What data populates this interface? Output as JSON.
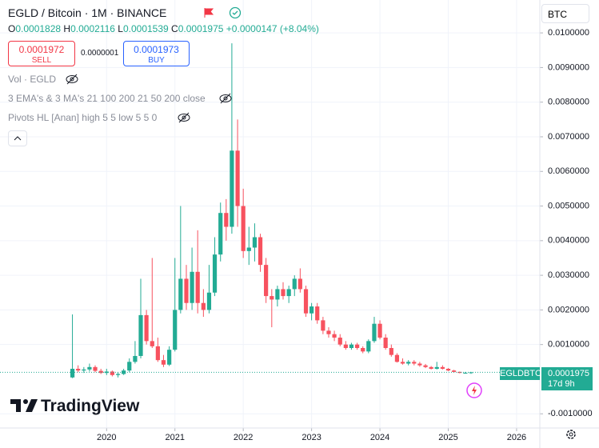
{
  "header": {
    "title": "EGLD / Bitcoin · 1M · BINANCE",
    "ohlc": [
      "O",
      "0.0001828",
      "H",
      "0.0002116",
      "L",
      "0.0001539",
      "C",
      "0.0001975"
    ],
    "change": "+0.0000147 (+8.04%)",
    "sell_price": "0.0001972",
    "sell": "SELL",
    "spread": "0.0000001",
    "buy_price": "0.0001973",
    "buy": "BUY",
    "indicators": [
      "Vol · EGLD",
      "3 EMA's & 3 MA's 21 100 200 21 50 200 close",
      "Pivots HL [Anan] high 5 5 low 5 5 0"
    ],
    "currency": "BTC",
    "symbol": "EGLDBTC",
    "countdown": "17d 9h",
    "brand": "TradingView"
  },
  "chart_data": {
    "type": "candlestick",
    "x": [
      2019.5,
      2019.583,
      2019.667,
      2019.75,
      2019.833,
      2019.917,
      2020,
      2020.083,
      2020.167,
      2020.25,
      2020.333,
      2020.417,
      2020.5,
      2020.583,
      2020.667,
      2020.75,
      2020.833,
      2020.917,
      2021,
      2021.083,
      2021.167,
      2021.25,
      2021.333,
      2021.417,
      2021.5,
      2021.583,
      2021.667,
      2021.75,
      2021.833,
      2021.917,
      2022,
      2022.083,
      2022.167,
      2022.25,
      2022.333,
      2022.417,
      2022.5,
      2022.583,
      2022.667,
      2022.75,
      2022.833,
      2022.917,
      2023,
      2023.083,
      2023.167,
      2023.25,
      2023.333,
      2023.417,
      2023.5,
      2023.583,
      2023.667,
      2023.75,
      2023.833,
      2023.917,
      2024,
      2024.083,
      2024.167,
      2024.25,
      2024.333,
      2024.417,
      2024.5,
      2024.583,
      2024.667,
      2024.75,
      2024.833,
      2024.917,
      2025,
      2025.083,
      2025.167,
      2025.25,
      2025.333
    ],
    "open": [
      5e-05,
      0.0003,
      0.00025,
      0.00028,
      0.00035,
      0.00024,
      0.00018,
      0.00022,
      0.00012,
      0.00015,
      0.00025,
      0.0005,
      0.00067,
      0.00185,
      0.0011,
      0.00095,
      0.00055,
      0.00042,
      0.00085,
      0.002,
      0.0029,
      0.0022,
      0.0031,
      0.0022,
      0.002,
      0.0025,
      0.0036,
      0.0048,
      0.0044,
      0.0066,
      0.005,
      0.0037,
      0.0038,
      0.0041,
      0.0033,
      0.0024,
      0.0023,
      0.0026,
      0.0024,
      0.0026,
      0.0029,
      0.0026,
      0.0019,
      0.0021,
      0.0017,
      0.0014,
      0.0013,
      0.0012,
      0.001,
      0.0009,
      0.001,
      0.0009,
      0.0008,
      0.0011,
      0.0016,
      0.0012,
      0.0009,
      0.0007,
      0.0005,
      0.00045,
      0.0005,
      0.00045,
      0.0004,
      0.00035,
      0.0003,
      0.00035,
      0.0003,
      0.00025,
      0.00021,
      0.00018,
      0.0001828
    ],
    "high": [
      0.00187,
      0.0004,
      0.00035,
      0.00045,
      0.0004,
      0.0003,
      0.0003,
      0.00025,
      0.0002,
      0.0003,
      0.0006,
      0.0011,
      0.0029,
      0.002,
      0.0035,
      0.0012,
      0.0007,
      0.00095,
      0.0035,
      0.005,
      0.0033,
      0.0038,
      0.0043,
      0.0026,
      0.0033,
      0.0041,
      0.0051,
      0.0052,
      0.0097,
      0.0075,
      0.0055,
      0.0044,
      0.0045,
      0.0042,
      0.0035,
      0.0026,
      0.0027,
      0.0028,
      0.0027,
      0.003,
      0.0032,
      0.0027,
      0.0022,
      0.0022,
      0.0018,
      0.0015,
      0.0014,
      0.0013,
      0.0011,
      0.00105,
      0.00105,
      0.00095,
      0.00115,
      0.0018,
      0.0017,
      0.0013,
      0.001,
      0.00075,
      0.0006,
      0.00055,
      0.00055,
      0.0005,
      0.00044,
      0.00038,
      0.0005,
      0.0004,
      0.00032,
      0.00027,
      0.00022,
      0.00021,
      0.0002116
    ],
    "low": [
      3e-05,
      0.0002,
      0.00018,
      0.00022,
      0.0002,
      0.00015,
      0.00012,
      8e-05,
      5e-05,
      0.00012,
      0.0002,
      0.00045,
      0.0006,
      0.001,
      0.0009,
      0.0005,
      0.00035,
      0.00038,
      0.0008,
      0.0019,
      0.002,
      0.002,
      0.0019,
      0.0018,
      0.0019,
      0.0024,
      0.0034,
      0.004,
      0.0042,
      0.0044,
      0.0035,
      0.0033,
      0.0034,
      0.0031,
      0.0022,
      0.0015,
      0.0021,
      0.0023,
      0.0022,
      0.0024,
      0.0025,
      0.0018,
      0.0017,
      0.0016,
      0.0013,
      0.0012,
      0.0011,
      0.00095,
      0.00085,
      0.00085,
      0.00085,
      0.00075,
      0.00075,
      0.00105,
      0.00115,
      0.00085,
      0.00065,
      0.00048,
      0.00042,
      0.0004,
      0.0004,
      0.00036,
      0.00032,
      0.00028,
      0.00028,
      0.00028,
      0.00023,
      0.00019,
      0.00017,
      0.00016,
      0.0001539
    ],
    "close": [
      0.0003,
      0.00025,
      0.00028,
      0.00035,
      0.00024,
      0.00018,
      0.00022,
      0.00012,
      0.00015,
      0.00025,
      0.0005,
      0.00067,
      0.00185,
      0.0011,
      0.00095,
      0.00055,
      0.00042,
      0.00085,
      0.002,
      0.0029,
      0.0022,
      0.0031,
      0.0022,
      0.002,
      0.0025,
      0.0036,
      0.0048,
      0.0044,
      0.0066,
      0.005,
      0.0037,
      0.0038,
      0.0041,
      0.0033,
      0.0024,
      0.0023,
      0.0026,
      0.0024,
      0.0026,
      0.0029,
      0.0026,
      0.0019,
      0.0021,
      0.0017,
      0.0014,
      0.0013,
      0.0012,
      0.001,
      0.0009,
      0.001,
      0.0009,
      0.0008,
      0.0011,
      0.0016,
      0.0012,
      0.0009,
      0.0007,
      0.0005,
      0.00045,
      0.0005,
      0.00045,
      0.0004,
      0.00035,
      0.0003,
      0.00035,
      0.0003,
      0.00025,
      0.00021,
      0.00018,
      0.0001828,
      0.0001975
    ],
    "up_color": "#22ab94",
    "down_color": "#f7525f",
    "xlim": [
      2018.44,
      2026.34
    ],
    "xticks": [
      2020,
      2021,
      2022,
      2023,
      2024,
      2025,
      2026
    ],
    "ylim": [
      -0.00141,
      0.01095
    ],
    "yticks": [
      {
        "value": 0.01,
        "label": "0.0100000"
      },
      {
        "value": 0.009,
        "label": "0.0090000"
      },
      {
        "value": 0.008,
        "label": "0.0080000"
      },
      {
        "value": 0.007,
        "label": "0.0070000"
      },
      {
        "value": 0.006,
        "label": "0.0060000"
      },
      {
        "value": 0.005,
        "label": "0.0050000"
      },
      {
        "value": 0.004,
        "label": "0.0040000"
      },
      {
        "value": 0.003,
        "label": "0.0030000"
      },
      {
        "value": 0.002,
        "label": "0.0020000"
      },
      {
        "value": 0.001,
        "label": "0.0010000"
      },
      {
        "value": -0.001,
        "label": "-0.0010000"
      }
    ],
    "last_price": {
      "value": 0.0001975,
      "label": "0.0001975"
    },
    "grid": true
  }
}
